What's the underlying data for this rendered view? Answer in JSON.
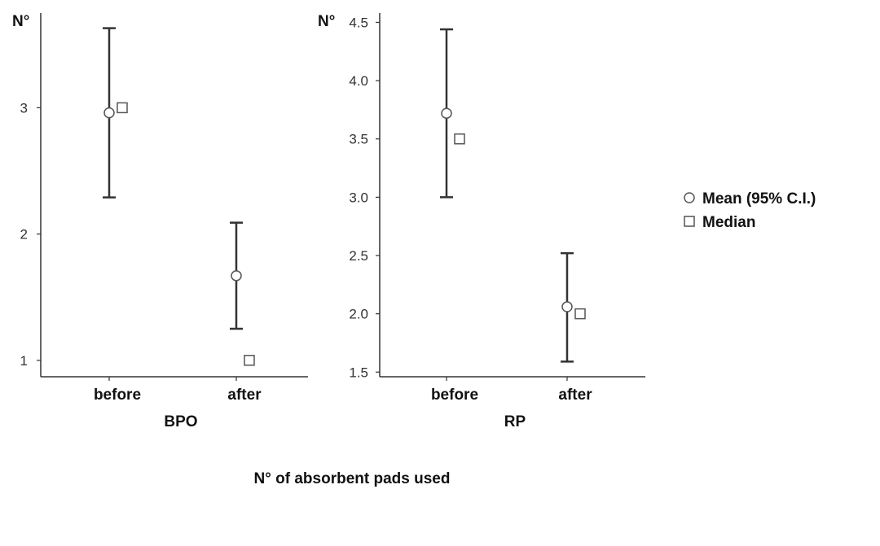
{
  "chart_data": {
    "type": "scatter",
    "caption": "N° of absorbent pads used",
    "legend": {
      "placement": "right",
      "entries": [
        {
          "label": "Mean (95% C.I.)",
          "marker": "circle"
        },
        {
          "label": "Median",
          "marker": "square"
        }
      ]
    },
    "panels": [
      {
        "xlabel": "BPO",
        "ylabel": "N°",
        "categories": [
          "before",
          "after"
        ],
        "ylim": [
          0.87,
          3.75
        ],
        "yticks": [
          {
            "value": 1,
            "label": "1"
          },
          {
            "value": 2,
            "label": "2"
          },
          {
            "value": 3,
            "label": "3"
          }
        ],
        "mean": [
          2.96,
          1.67
        ],
        "ci_lower": [
          2.29,
          1.25
        ],
        "ci_upper": [
          3.63,
          2.09
        ],
        "median": [
          3.0,
          1.0
        ]
      },
      {
        "xlabel": "RP",
        "ylabel": "N°",
        "categories": [
          "before",
          "after"
        ],
        "ylim": [
          1.46,
          4.58
        ],
        "yticks": [
          {
            "value": 1.5,
            "label": "1.5"
          },
          {
            "value": 2.0,
            "label": "2.0"
          },
          {
            "value": 2.5,
            "label": "2.5"
          },
          {
            "value": 3.0,
            "label": "3.0"
          },
          {
            "value": 3.5,
            "label": "3.5"
          },
          {
            "value": 4.0,
            "label": "4.0"
          },
          {
            "value": 4.5,
            "label": "4.5"
          }
        ],
        "mean": [
          3.72,
          2.06
        ],
        "ci_lower": [
          3.0,
          1.59
        ],
        "ci_upper": [
          4.44,
          2.52
        ],
        "median": [
          3.5,
          2.0
        ]
      }
    ],
    "colors": {
      "axis": "#333333",
      "errorbar": "#333333",
      "marker_fill": "#ffffff",
      "marker_stroke": "#555555"
    }
  }
}
